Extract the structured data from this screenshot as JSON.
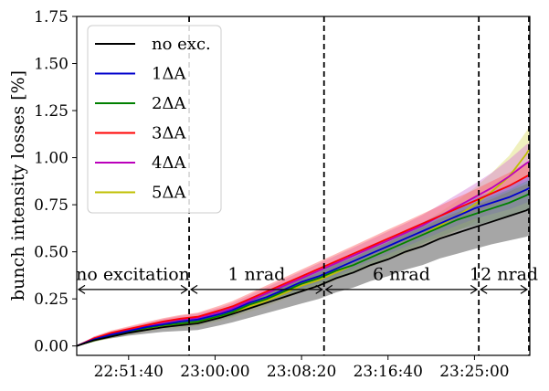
{
  "chart_data": {
    "type": "line",
    "title": "",
    "xlabel": "",
    "ylabel": "bunch intensity losses [%]",
    "xlim": [
      0,
      2620
    ],
    "ylim": [
      -0.05,
      1.75
    ],
    "x_unit": "seconds after 22:46:40",
    "xticks": [
      {
        "value": 300,
        "label": "22:51:40"
      },
      {
        "value": 800,
        "label": "23:00:00"
      },
      {
        "value": 1300,
        "label": "23:08:20"
      },
      {
        "value": 1800,
        "label": "23:16:40"
      },
      {
        "value": 2300,
        "label": "23:25:00"
      }
    ],
    "yticks": [
      {
        "value": 0.0,
        "label": "0.00"
      },
      {
        "value": 0.25,
        "label": "0.25"
      },
      {
        "value": 0.5,
        "label": "0.50"
      },
      {
        "value": 0.75,
        "label": "0.75"
      },
      {
        "value": 1.0,
        "label": "1.00"
      },
      {
        "value": 1.25,
        "label": "1.25"
      },
      {
        "value": 1.5,
        "label": "1.50"
      },
      {
        "value": 1.75,
        "label": "1.75"
      }
    ],
    "x": [
      0,
      100,
      200,
      300,
      400,
      500,
      600,
      700,
      830,
      900,
      1000,
      1100,
      1200,
      1300,
      1400,
      1500,
      1600,
      1700,
      1800,
      1900,
      2000,
      2100,
      2200,
      2300,
      2400,
      2500,
      2600,
      2620
    ],
    "series": [
      {
        "name": "no exc.",
        "color": "#000000",
        "band_color": "#808080",
        "values": [
          0.0,
          0.03,
          0.05,
          0.07,
          0.085,
          0.1,
          0.11,
          0.12,
          0.15,
          0.17,
          0.2,
          0.23,
          0.26,
          0.29,
          0.32,
          0.36,
          0.39,
          0.43,
          0.46,
          0.5,
          0.53,
          0.57,
          0.6,
          0.63,
          0.66,
          0.69,
          0.72,
          0.73
        ],
        "band": [
          0.0,
          0.005,
          0.01,
          0.015,
          0.02,
          0.025,
          0.03,
          0.035,
          0.04,
          0.045,
          0.05,
          0.055,
          0.06,
          0.065,
          0.07,
          0.075,
          0.08,
          0.085,
          0.09,
          0.095,
          0.1,
          0.105,
          0.11,
          0.115,
          0.12,
          0.13,
          0.14,
          0.14
        ]
      },
      {
        "name": "1ΔA",
        "color": "#0000cc",
        "band_color": "#6b6bff",
        "values": [
          0.0,
          0.035,
          0.06,
          0.08,
          0.1,
          0.115,
          0.13,
          0.14,
          0.17,
          0.19,
          0.23,
          0.26,
          0.3,
          0.34,
          0.37,
          0.41,
          0.45,
          0.49,
          0.53,
          0.57,
          0.61,
          0.65,
          0.69,
          0.73,
          0.76,
          0.79,
          0.83,
          0.84
        ],
        "band": [
          0.0,
          0.008,
          0.01,
          0.012,
          0.014,
          0.015,
          0.016,
          0.018,
          0.02,
          0.022,
          0.025,
          0.028,
          0.03,
          0.032,
          0.034,
          0.036,
          0.038,
          0.04,
          0.042,
          0.044,
          0.046,
          0.048,
          0.05,
          0.055,
          0.06,
          0.065,
          0.07,
          0.07
        ]
      },
      {
        "name": "2ΔA",
        "color": "#008000",
        "band_color": "#4caf4c",
        "values": [
          0.0,
          0.03,
          0.055,
          0.075,
          0.095,
          0.11,
          0.12,
          0.13,
          0.16,
          0.18,
          0.22,
          0.25,
          0.29,
          0.33,
          0.36,
          0.4,
          0.43,
          0.47,
          0.51,
          0.55,
          0.59,
          0.63,
          0.67,
          0.7,
          0.73,
          0.76,
          0.8,
          0.81
        ],
        "band": [
          0.0,
          0.008,
          0.01,
          0.012,
          0.014,
          0.015,
          0.016,
          0.018,
          0.02,
          0.022,
          0.025,
          0.028,
          0.03,
          0.032,
          0.034,
          0.036,
          0.038,
          0.04,
          0.042,
          0.044,
          0.046,
          0.05,
          0.055,
          0.06,
          0.065,
          0.07,
          0.075,
          0.075
        ]
      },
      {
        "name": "3ΔA",
        "color": "#ff0000",
        "band_color": "#ff6060",
        "values": [
          0.0,
          0.04,
          0.07,
          0.09,
          0.11,
          0.13,
          0.145,
          0.155,
          0.19,
          0.21,
          0.25,
          0.29,
          0.33,
          0.37,
          0.41,
          0.45,
          0.49,
          0.53,
          0.57,
          0.61,
          0.65,
          0.69,
          0.73,
          0.77,
          0.81,
          0.85,
          0.9,
          0.91
        ],
        "band": [
          0.0,
          0.01,
          0.012,
          0.014,
          0.016,
          0.018,
          0.02,
          0.022,
          0.025,
          0.028,
          0.03,
          0.032,
          0.034,
          0.036,
          0.038,
          0.04,
          0.042,
          0.045,
          0.048,
          0.05,
          0.052,
          0.055,
          0.058,
          0.06,
          0.065,
          0.07,
          0.075,
          0.075
        ]
      },
      {
        "name": "4ΔA",
        "color": "#bb00bb",
        "band_color": "#d47ad4",
        "values": [
          0.0,
          0.04,
          0.065,
          0.085,
          0.105,
          0.125,
          0.14,
          0.15,
          0.18,
          0.2,
          0.24,
          0.28,
          0.32,
          0.36,
          0.4,
          0.44,
          0.48,
          0.52,
          0.56,
          0.6,
          0.64,
          0.69,
          0.74,
          0.79,
          0.84,
          0.9,
          0.97,
          0.98
        ],
        "band": [
          0.0,
          0.01,
          0.012,
          0.014,
          0.016,
          0.018,
          0.02,
          0.022,
          0.025,
          0.028,
          0.03,
          0.032,
          0.034,
          0.036,
          0.038,
          0.04,
          0.042,
          0.045,
          0.048,
          0.05,
          0.055,
          0.06,
          0.065,
          0.07,
          0.08,
          0.09,
          0.1,
          0.1
        ]
      },
      {
        "name": "5ΔA",
        "color": "#bfbf00",
        "band_color": "#dede6e",
        "values": [
          0.0,
          0.03,
          0.05,
          0.07,
          0.09,
          0.105,
          0.115,
          0.125,
          0.155,
          0.175,
          0.21,
          0.24,
          0.28,
          0.32,
          0.35,
          0.39,
          0.43,
          0.47,
          0.51,
          0.55,
          0.59,
          0.64,
          0.69,
          0.75,
          0.82,
          0.9,
          1.02,
          1.05
        ],
        "band": [
          0.0,
          0.008,
          0.01,
          0.012,
          0.014,
          0.016,
          0.018,
          0.02,
          0.022,
          0.025,
          0.028,
          0.03,
          0.032,
          0.035,
          0.038,
          0.04,
          0.045,
          0.05,
          0.055,
          0.06,
          0.065,
          0.07,
          0.08,
          0.09,
          0.1,
          0.11,
          0.12,
          0.12
        ]
      }
    ],
    "vlines": [
      650,
      1430,
      2325,
      2620
    ],
    "annotations": [
      {
        "label": "no excitation",
        "x_start": 0,
        "x_end": 650,
        "y_arrow": 0.3,
        "y_text": 0.35
      },
      {
        "label": "1 nrad",
        "x_start": 650,
        "x_end": 1430,
        "y_arrow": 0.3,
        "y_text": 0.35
      },
      {
        "label": "6 nrad",
        "x_start": 1430,
        "x_end": 2325,
        "y_arrow": 0.3,
        "y_text": 0.35
      },
      {
        "label": "12 nrad",
        "x_start": 2325,
        "x_end": 2620,
        "y_arrow": 0.3,
        "y_text": 0.35
      }
    ],
    "legend": {
      "placement": "top-left"
    }
  }
}
